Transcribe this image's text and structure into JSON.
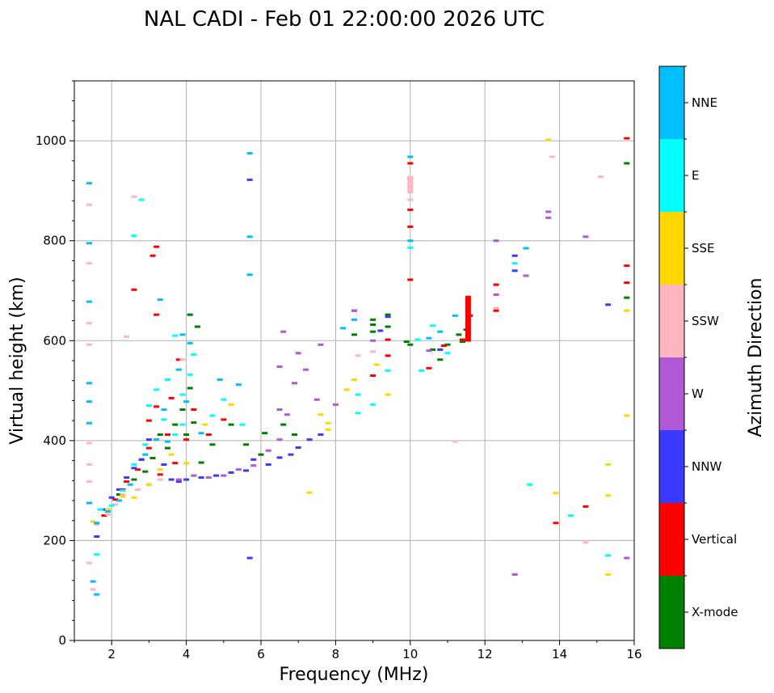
{
  "chart_data": {
    "type": "scatter",
    "title": "NAL CADI - Feb 01 22:00:00 2026 UTC",
    "xlabel": "Frequency (MHz)",
    "ylabel": "Virtual height (km)",
    "xlim": [
      1,
      16
    ],
    "ylim": [
      0,
      1120
    ],
    "xticks": [
      2,
      4,
      6,
      8,
      10,
      12,
      14,
      16
    ],
    "yticks": [
      0,
      200,
      400,
      600,
      800,
      1000
    ],
    "grid": true,
    "colorbar": {
      "label": "Azimuth Direction",
      "position": "right",
      "categories": [
        {
          "name": "X-mode",
          "color": "#008000"
        },
        {
          "name": "Vertical",
          "color": "#ff0000"
        },
        {
          "name": "NNW",
          "color": "#3a3aff"
        },
        {
          "name": "W",
          "color": "#b058d6"
        },
        {
          "name": "SSW",
          "color": "#ffb6c1"
        },
        {
          "name": "SSE",
          "color": "#ffd700"
        },
        {
          "name": "E",
          "color": "#00ffff"
        },
        {
          "name": "NNE",
          "color": "#00bfff"
        }
      ]
    },
    "series": [
      {
        "name": "X-mode",
        "color": "#008000",
        "points": [
          [
            1.9,
            262
          ],
          [
            2.2,
            292
          ],
          [
            2.6,
            322
          ],
          [
            2.9,
            338
          ],
          [
            3.1,
            365
          ],
          [
            3.3,
            412
          ],
          [
            3.5,
            385
          ],
          [
            3.7,
            432
          ],
          [
            3.9,
            462
          ],
          [
            4.0,
            412
          ],
          [
            4.1,
            505
          ],
          [
            4.2,
            436
          ],
          [
            4.1,
            652
          ],
          [
            4.3,
            628
          ],
          [
            4.4,
            356
          ],
          [
            4.7,
            392
          ],
          [
            5.2,
            432
          ],
          [
            5.6,
            392
          ],
          [
            6.0,
            372
          ],
          [
            6.1,
            415
          ],
          [
            6.6,
            432
          ],
          [
            6.9,
            412
          ],
          [
            8.5,
            612
          ],
          [
            9.0,
            632
          ],
          [
            9.0,
            642
          ],
          [
            9.0,
            618
          ],
          [
            9.4,
            652
          ],
          [
            9.4,
            628
          ],
          [
            9.9,
            598
          ],
          [
            10.0,
            592
          ],
          [
            10.6,
            582
          ],
          [
            10.8,
            562
          ],
          [
            11.0,
            592
          ],
          [
            11.3,
            612
          ],
          [
            11.4,
            598
          ],
          [
            11.5,
            622
          ],
          [
            15.8,
            686
          ],
          [
            15.8,
            955
          ]
        ]
      },
      {
        "name": "Vertical",
        "color": "#ff0000",
        "points": [
          [
            1.8,
            250
          ],
          [
            2.1,
            282
          ],
          [
            2.3,
            302
          ],
          [
            2.4,
            318
          ],
          [
            2.7,
            342
          ],
          [
            2.8,
            362
          ],
          [
            3.0,
            385
          ],
          [
            3.0,
            440
          ],
          [
            3.1,
            770
          ],
          [
            3.2,
            652
          ],
          [
            3.2,
            468
          ],
          [
            3.3,
            332
          ],
          [
            3.5,
            412
          ],
          [
            3.6,
            485
          ],
          [
            3.7,
            355
          ],
          [
            3.8,
            562
          ],
          [
            4.0,
            402
          ],
          [
            4.2,
            462
          ],
          [
            4.6,
            412
          ],
          [
            5.0,
            442
          ],
          [
            2.6,
            702
          ],
          [
            3.2,
            788
          ],
          [
            9.0,
            530
          ],
          [
            9.4,
            602
          ],
          [
            9.4,
            570
          ],
          [
            10.0,
            722
          ],
          [
            10.0,
            828
          ],
          [
            10.0,
            862
          ],
          [
            10.0,
            925
          ],
          [
            10.0,
            955
          ],
          [
            10.5,
            545
          ],
          [
            10.9,
            590
          ],
          [
            11.4,
            602
          ],
          [
            11.6,
            650
          ],
          [
            12.3,
            712
          ],
          [
            12.3,
            660
          ],
          [
            13.9,
            235
          ],
          [
            14.7,
            268
          ],
          [
            15.8,
            750
          ],
          [
            15.8,
            716
          ],
          [
            15.8,
            1005
          ]
        ]
      },
      {
        "name": "NNW",
        "color": "#3a3aff",
        "points": [
          [
            1.6,
            208
          ],
          [
            1.8,
            262
          ],
          [
            2.0,
            286
          ],
          [
            2.2,
            302
          ],
          [
            2.4,
            326
          ],
          [
            2.6,
            345
          ],
          [
            2.8,
            362
          ],
          [
            3.0,
            402
          ],
          [
            3.4,
            352
          ],
          [
            3.6,
            322
          ],
          [
            3.8,
            318
          ],
          [
            4.0,
            322
          ],
          [
            4.4,
            326
          ],
          [
            4.8,
            330
          ],
          [
            5.2,
            336
          ],
          [
            5.6,
            340
          ],
          [
            5.8,
            362
          ],
          [
            6.2,
            352
          ],
          [
            6.5,
            366
          ],
          [
            6.8,
            372
          ],
          [
            7.0,
            386
          ],
          [
            7.3,
            402
          ],
          [
            7.6,
            412
          ],
          [
            5.7,
            922
          ],
          [
            5.7,
            165
          ],
          [
            8.5,
            660
          ],
          [
            9.2,
            620
          ],
          [
            9.4,
            648
          ],
          [
            10.8,
            582
          ],
          [
            12.8,
            770
          ],
          [
            12.8,
            740
          ],
          [
            15.3,
            672
          ]
        ]
      },
      {
        "name": "W",
        "color": "#b058d6",
        "points": [
          [
            3.8,
            322
          ],
          [
            4.2,
            330
          ],
          [
            4.6,
            326
          ],
          [
            5.0,
            330
          ],
          [
            5.4,
            342
          ],
          [
            5.8,
            350
          ],
          [
            6.2,
            380
          ],
          [
            6.5,
            402
          ],
          [
            6.5,
            462
          ],
          [
            6.5,
            548
          ],
          [
            6.6,
            618
          ],
          [
            6.7,
            452
          ],
          [
            6.9,
            515
          ],
          [
            7.0,
            575
          ],
          [
            7.2,
            542
          ],
          [
            7.5,
            482
          ],
          [
            7.6,
            592
          ],
          [
            8.0,
            472
          ],
          [
            8.5,
            660
          ],
          [
            9.0,
            600
          ],
          [
            10.5,
            580
          ],
          [
            12.3,
            800
          ],
          [
            12.3,
            692
          ],
          [
            12.8,
            132
          ],
          [
            13.1,
            730
          ],
          [
            13.7,
            858
          ],
          [
            13.7,
            846
          ],
          [
            14.7,
            808
          ],
          [
            15.8,
            165
          ]
        ]
      },
      {
        "name": "SSW",
        "color": "#ffb6c1",
        "points": [
          [
            1.4,
            755
          ],
          [
            1.4,
            635
          ],
          [
            1.4,
            592
          ],
          [
            1.4,
            395
          ],
          [
            1.4,
            352
          ],
          [
            1.4,
            318
          ],
          [
            1.4,
            155
          ],
          [
            1.4,
            872
          ],
          [
            1.5,
            102
          ],
          [
            1.6,
            232
          ],
          [
            1.9,
            252
          ],
          [
            2.1,
            272
          ],
          [
            2.3,
            292
          ],
          [
            2.7,
            302
          ],
          [
            3.0,
            312
          ],
          [
            3.3,
            322
          ],
          [
            3.9,
            562
          ],
          [
            2.4,
            608
          ],
          [
            2.6,
            888
          ],
          [
            8.6,
            570
          ],
          [
            9.0,
            578
          ],
          [
            10.0,
            912
          ],
          [
            10.0,
            882
          ],
          [
            11.2,
            398
          ],
          [
            12.3,
            665
          ],
          [
            13.8,
            968
          ],
          [
            14.7,
            196
          ],
          [
            15.1,
            928
          ]
        ]
      },
      {
        "name": "SSE",
        "color": "#ffd700",
        "points": [
          [
            1.5,
            238
          ],
          [
            1.9,
            262
          ],
          [
            2.3,
            288
          ],
          [
            2.6,
            286
          ],
          [
            3.0,
            312
          ],
          [
            3.3,
            342
          ],
          [
            3.6,
            372
          ],
          [
            4.0,
            355
          ],
          [
            4.5,
            432
          ],
          [
            5.2,
            472
          ],
          [
            7.3,
            296
          ],
          [
            7.6,
            452
          ],
          [
            7.8,
            435
          ],
          [
            7.8,
            422
          ],
          [
            8.3,
            502
          ],
          [
            8.5,
            522
          ],
          [
            9.1,
            552
          ],
          [
            9.4,
            492
          ],
          [
            13.7,
            1002
          ],
          [
            13.9,
            295
          ],
          [
            15.3,
            352
          ],
          [
            15.3,
            290
          ],
          [
            15.3,
            132
          ],
          [
            15.8,
            660
          ],
          [
            15.8,
            450
          ]
        ]
      },
      {
        "name": "E",
        "color": "#00ffff",
        "points": [
          [
            1.6,
            172
          ],
          [
            1.7,
            262
          ],
          [
            2.0,
            270
          ],
          [
            2.3,
            300
          ],
          [
            2.6,
            352
          ],
          [
            2.9,
            392
          ],
          [
            3.0,
            470
          ],
          [
            3.2,
            502
          ],
          [
            3.4,
            442
          ],
          [
            3.5,
            522
          ],
          [
            3.7,
            412
          ],
          [
            3.7,
            610
          ],
          [
            3.9,
            492
          ],
          [
            3.9,
            432
          ],
          [
            4.1,
            532
          ],
          [
            4.2,
            572
          ],
          [
            4.7,
            450
          ],
          [
            5.0,
            482
          ],
          [
            5.5,
            432
          ],
          [
            2.6,
            810
          ],
          [
            2.8,
            882
          ],
          [
            8.6,
            455
          ],
          [
            8.6,
            492
          ],
          [
            9.0,
            472
          ],
          [
            9.4,
            540
          ],
          [
            10.0,
            786
          ],
          [
            10.2,
            602
          ],
          [
            10.6,
            630
          ],
          [
            10.3,
            540
          ],
          [
            11.0,
            575
          ],
          [
            12.8,
            755
          ],
          [
            13.2,
            312
          ],
          [
            14.3,
            250
          ],
          [
            15.3,
            170
          ]
        ]
      },
      {
        "name": "NNE",
        "color": "#00bfff",
        "points": [
          [
            1.4,
            915
          ],
          [
            1.4,
            795
          ],
          [
            1.4,
            678
          ],
          [
            1.4,
            515
          ],
          [
            1.4,
            478
          ],
          [
            1.4,
            435
          ],
          [
            1.4,
            275
          ],
          [
            1.5,
            118
          ],
          [
            1.6,
            92
          ],
          [
            1.6,
            235
          ],
          [
            1.9,
            258
          ],
          [
            2.2,
            280
          ],
          [
            2.5,
            312
          ],
          [
            2.9,
            372
          ],
          [
            3.2,
            402
          ],
          [
            3.4,
            462
          ],
          [
            3.5,
            398
          ],
          [
            3.8,
            542
          ],
          [
            3.9,
            612
          ],
          [
            4.0,
            478
          ],
          [
            4.1,
            595
          ],
          [
            4.4,
            415
          ],
          [
            4.9,
            522
          ],
          [
            5.4,
            512
          ],
          [
            3.3,
            682
          ],
          [
            5.7,
            975
          ],
          [
            5.7,
            808
          ],
          [
            5.7,
            732
          ],
          [
            8.2,
            625
          ],
          [
            8.5,
            642
          ],
          [
            10.0,
            968
          ],
          [
            10.0,
            800
          ],
          [
            10.5,
            605
          ],
          [
            10.8,
            618
          ],
          [
            11.2,
            650
          ],
          [
            13.1,
            785
          ]
        ]
      }
    ],
    "shaded_streaks": [
      {
        "color": "#ff0000",
        "x": 11.55,
        "y_range": [
          598,
          690
        ]
      },
      {
        "color": "#ffb6c1",
        "x": 10.0,
        "y_range": [
          895,
          930
        ]
      }
    ]
  }
}
